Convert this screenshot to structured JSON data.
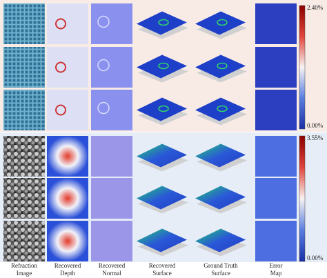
{
  "colorbars": [
    {
      "max": "2.40%",
      "min": "0.00%"
    },
    {
      "max": "3.55%",
      "min": "0.00%"
    }
  ],
  "column_labels": [
    [
      "Refraction",
      "Image"
    ],
    [
      "Recovered",
      "Depth"
    ],
    [
      "Recovered",
      "Normal"
    ],
    [
      "Recovered",
      "Surface"
    ],
    [
      "Ground Truth",
      "Surface"
    ],
    [
      "Error",
      "Map"
    ]
  ]
}
